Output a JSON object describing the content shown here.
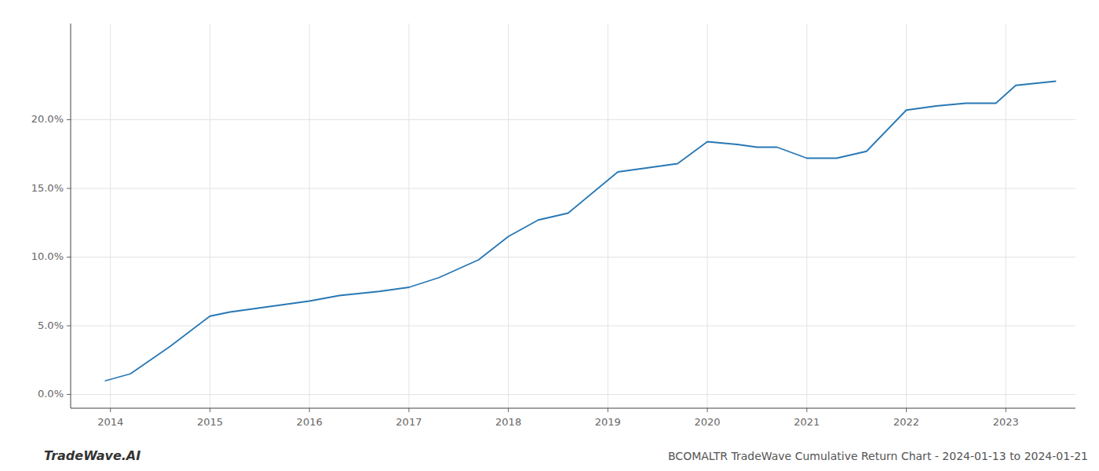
{
  "chart_data": {
    "type": "line",
    "title": "BCOMALTR TradeWave Cumulative Return Chart - 2024-01-13 to 2024-01-21",
    "annotations": [
      "TradeWave.AI"
    ],
    "color": "#2878b5",
    "grid": true,
    "x": [
      2013.95,
      2014.2,
      2014.6,
      2015.0,
      2015.2,
      2015.5,
      2016.0,
      2016.3,
      2016.7,
      2017.0,
      2017.3,
      2017.7,
      2018.0,
      2018.3,
      2018.6,
      2018.9,
      2019.1,
      2019.4,
      2019.7,
      2020.0,
      2020.3,
      2020.5,
      2020.7,
      2021.0,
      2021.3,
      2021.6,
      2022.0,
      2022.3,
      2022.6,
      2022.9,
      2023.1,
      2023.5
    ],
    "values": [
      1.0,
      1.5,
      3.5,
      5.7,
      6.0,
      6.3,
      6.8,
      7.2,
      7.5,
      7.8,
      8.5,
      9.8,
      11.5,
      12.7,
      13.2,
      15.0,
      16.2,
      16.5,
      16.8,
      18.4,
      18.2,
      18.0,
      18.0,
      17.2,
      17.2,
      17.7,
      20.7,
      21.0,
      21.2,
      21.2,
      22.5,
      22.8
    ],
    "xlim": [
      2013.6,
      2023.7
    ],
    "ylim": [
      -1.0,
      27.0
    ],
    "xticks": [
      2014,
      2015,
      2016,
      2017,
      2018,
      2019,
      2020,
      2021,
      2022,
      2023
    ],
    "yticks": [
      {
        "value": 0.0,
        "label": "0.0%"
      },
      {
        "value": 5.0,
        "label": "5.0%"
      },
      {
        "value": 10.0,
        "label": "10.0%"
      },
      {
        "value": 15.0,
        "label": "15.0%"
      },
      {
        "value": 20.0,
        "label": "20.0%"
      }
    ]
  }
}
